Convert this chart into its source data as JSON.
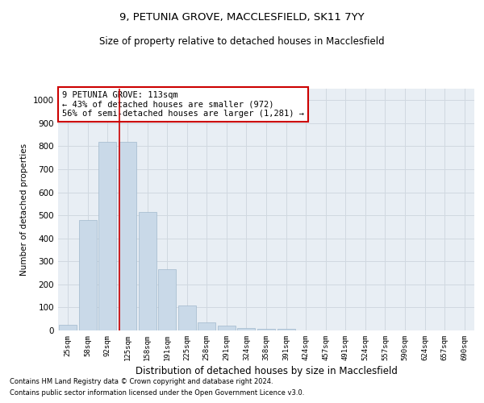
{
  "title1": "9, PETUNIA GROVE, MACCLESFIELD, SK11 7YY",
  "title2": "Size of property relative to detached houses in Macclesfield",
  "xlabel": "Distribution of detached houses by size in Macclesfield",
  "ylabel": "Number of detached properties",
  "footnote1": "Contains HM Land Registry data © Crown copyright and database right 2024.",
  "footnote2": "Contains public sector information licensed under the Open Government Licence v3.0.",
  "categories": [
    "25sqm",
    "58sqm",
    "92sqm",
    "125sqm",
    "158sqm",
    "191sqm",
    "225sqm",
    "258sqm",
    "291sqm",
    "324sqm",
    "358sqm",
    "391sqm",
    "424sqm",
    "457sqm",
    "491sqm",
    "524sqm",
    "557sqm",
    "590sqm",
    "624sqm",
    "657sqm",
    "690sqm"
  ],
  "values": [
    25,
    480,
    820,
    820,
    515,
    265,
    110,
    35,
    20,
    10,
    7,
    7,
    0,
    0,
    0,
    0,
    0,
    0,
    0,
    0,
    0
  ],
  "bar_color": "#c9d9e8",
  "bar_edge_color": "#a0b8cc",
  "grid_color": "#d0d8e0",
  "background_color": "#e8eef4",
  "annotation_box_text": "9 PETUNIA GROVE: 113sqm\n← 43% of detached houses are smaller (972)\n56% of semi-detached houses are larger (1,281) →",
  "annotation_box_color": "#ffffff",
  "annotation_box_edge_color": "#cc0000",
  "red_line_x": 2.6,
  "ylim": [
    0,
    1050
  ],
  "yticks": [
    0,
    100,
    200,
    300,
    400,
    500,
    600,
    700,
    800,
    900,
    1000
  ]
}
